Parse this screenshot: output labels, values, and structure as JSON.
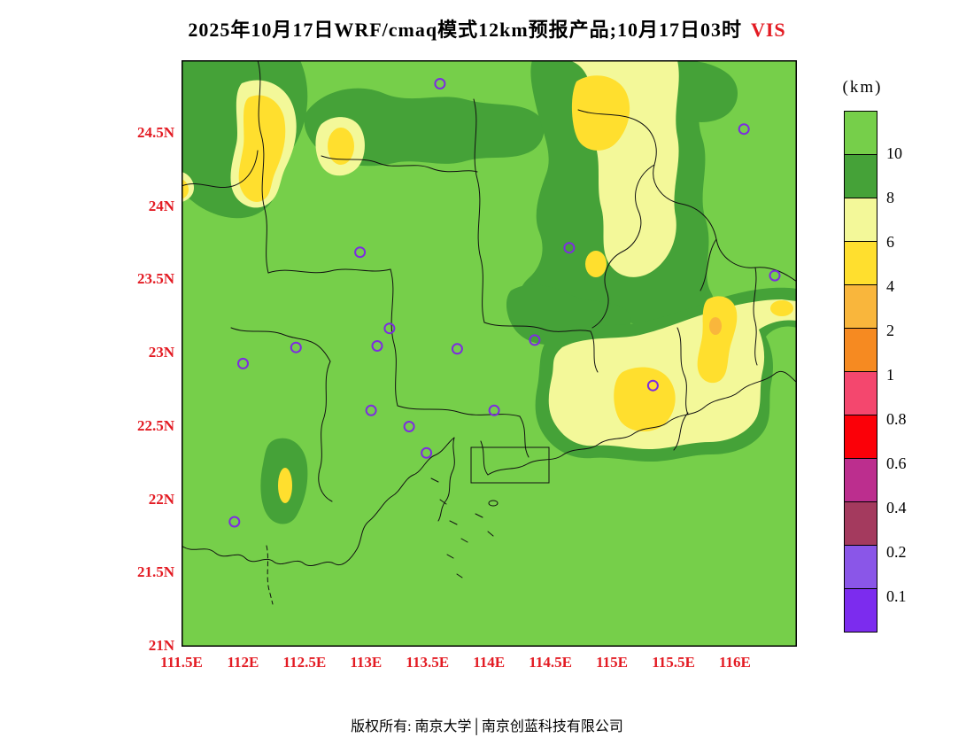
{
  "title": {
    "text": "2025年10月17日WRF/cmaq模式12km预报产品;10月17日03时",
    "variable": "VIS",
    "variable_color": "#e31b23"
  },
  "footer": {
    "text": "版权所有: 南京大学│南京创蓝科技有限公司"
  },
  "axes": {
    "tick_color": "#e31b23",
    "lat_ticks": [
      "24.5N",
      "24N",
      "23.5N",
      "23N",
      "22.5N",
      "22N",
      "21.5N",
      "21N"
    ],
    "lon_ticks": [
      "111.5E",
      "112E",
      "112.5E",
      "113E",
      "113.5E",
      "114E",
      "114.5E",
      "115E",
      "115.5E",
      "116E"
    ]
  },
  "colorbar": {
    "unit": "(km)",
    "tick_labels": [
      "10",
      "8",
      "6",
      "4",
      "2",
      "1",
      "0.8",
      "0.6",
      "0.4",
      "0.2",
      "0.1"
    ],
    "colors": [
      "#76cf4a",
      "#45a238",
      "#f3f899",
      "#ffdf2e",
      "#f9b63c",
      "#f68a21",
      "#f4476e",
      "#fb0008",
      "#bc2e8e",
      "#a43a5e",
      "#8a56e8",
      "#7c2cee"
    ]
  },
  "chart_data": {
    "type": "heatmap",
    "title": "2025年10月17日WRF/cmaq模式12km预报产品;10月17日03时 VIS",
    "variable": "visibility (VIS)",
    "unit": "km",
    "model": "WRF/cmaq模式12km",
    "valid_time": "10月17日03时",
    "lon_range": [
      111.5,
      116.5
    ],
    "lat_range": [
      21,
      25
    ],
    "levels": [
      0.1,
      0.2,
      0.4,
      0.6,
      0.8,
      1,
      2,
      4,
      6,
      8,
      10
    ],
    "level_colors": [
      "#7c2cee",
      "#8a56e8",
      "#a43a5e",
      "#bc2e8e",
      "#fb0008",
      "#f4476e",
      "#f68a21",
      "#f9b63c",
      "#ffdf2e",
      "#f3f899",
      "#45a238",
      "#76cf4a"
    ],
    "station_marker_color": "#7d2ce0",
    "stations": [
      [
        113.6,
        24.84
      ],
      [
        116.07,
        24.53
      ],
      [
        112.95,
        23.69
      ],
      [
        114.65,
        23.72
      ],
      [
        116.32,
        23.53
      ],
      [
        113.19,
        23.17
      ],
      [
        113.09,
        23.05
      ],
      [
        113.74,
        23.03
      ],
      [
        114.37,
        23.09
      ],
      [
        112.43,
        23.04
      ],
      [
        112.0,
        22.93
      ],
      [
        115.33,
        22.78
      ],
      [
        113.04,
        22.61
      ],
      [
        113.35,
        22.5
      ],
      [
        114.04,
        22.61
      ],
      [
        113.49,
        22.32
      ],
      [
        111.93,
        21.85
      ]
    ],
    "regions": [
      {
        "area": "most of domain",
        "visibility_km": ">10"
      },
      {
        "area": "NW pocket near 112.2E, 24.3N",
        "visibility_km": "4-8"
      },
      {
        "area": "north band 112.6-114.3E, 24.3-24.8N",
        "visibility_km": "8-10 with 4-6 spot near 112.8E, 24.4N"
      },
      {
        "area": "NE region 114.6-115.4E, 23.3-25N",
        "visibility_km": "6-8 with 4-6 cores near 114.9E, 24.5N"
      },
      {
        "area": "SE coastal 114.4-116.5E, 22.5-23.4N",
        "visibility_km": "6-8 with 4-6 cores; local 2-4 spot near 115.85E, 23.2N"
      },
      {
        "area": "small pocket near 112.3E, 22.0N",
        "visibility_km": "6-8"
      }
    ]
  }
}
